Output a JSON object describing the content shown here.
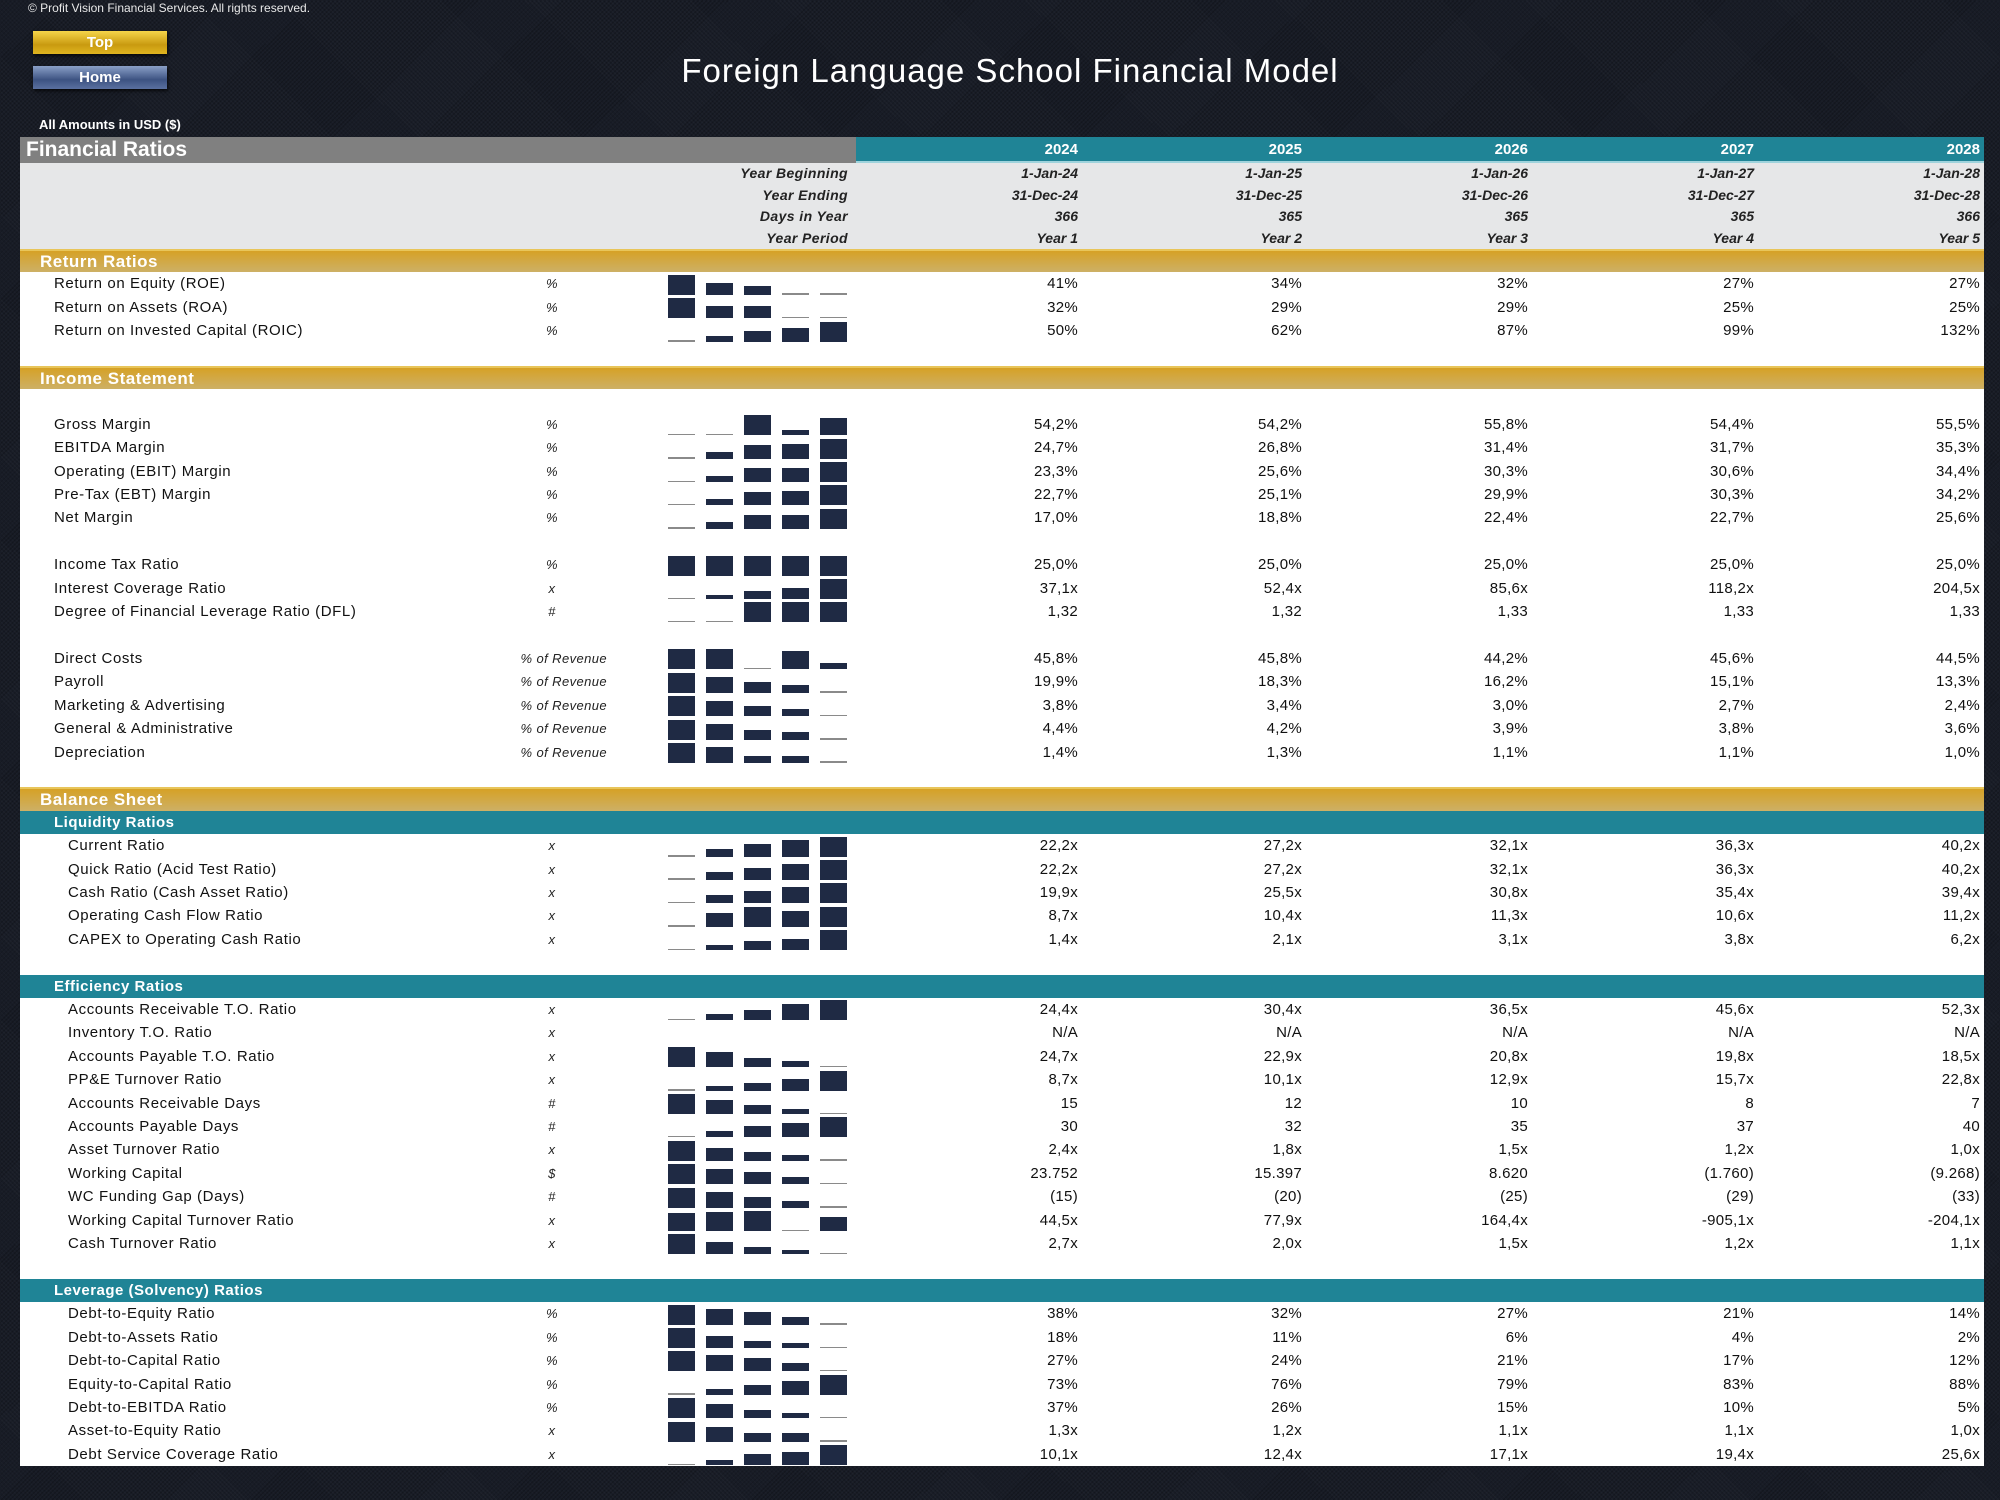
{
  "copyright": "© Profit Vision Financial Services. All rights reserved.",
  "buttons": {
    "top": "Top",
    "home": "Home"
  },
  "title": "Foreign Language School Financial Model",
  "amounts_note": "All Amounts in  USD ($)",
  "header": {
    "title": "Financial Ratios",
    "years": [
      "2024",
      "2025",
      "2026",
      "2027",
      "2028"
    ],
    "info_rows": [
      {
        "label": "Year Beginning",
        "values": [
          "1-Jan-24",
          "1-Jan-25",
          "1-Jan-26",
          "1-Jan-27",
          "1-Jan-28"
        ]
      },
      {
        "label": "Year Ending",
        "values": [
          "31-Dec-24",
          "31-Dec-25",
          "31-Dec-26",
          "31-Dec-27",
          "31-Dec-28"
        ]
      },
      {
        "label": "Days in Year",
        "values": [
          "366",
          "365",
          "365",
          "365",
          "366"
        ]
      },
      {
        "label": "Year Period",
        "values": [
          "Year 1",
          "Year 2",
          "Year 3",
          "Year 4",
          "Year 5"
        ]
      }
    ]
  },
  "colors": {
    "gold": "#d6a126",
    "teal": "#1f8496",
    "header_gray": "#808080",
    "spark": "#1f2a44"
  },
  "rows": [
    {
      "kind": "section",
      "label": "Return Ratios"
    },
    {
      "kind": "item",
      "label": "Return on Equity (ROE)",
      "unit": "%",
      "values": [
        "41%",
        "34%",
        "32%",
        "27%",
        "27%"
      ]
    },
    {
      "kind": "item",
      "label": "Return on Assets (ROA)",
      "unit": "%",
      "values": [
        "32%",
        "29%",
        "29%",
        "25%",
        "25%"
      ]
    },
    {
      "kind": "item",
      "label": "Return on Invested Capital (ROIC)",
      "unit": "%",
      "values": [
        "50%",
        "62%",
        "87%",
        "99%",
        "132%"
      ]
    },
    {
      "kind": "blank"
    },
    {
      "kind": "section",
      "label": "Income Statement"
    },
    {
      "kind": "blank"
    },
    {
      "kind": "item",
      "label": "Gross Margin",
      "unit": "%",
      "values": [
        "54,2%",
        "54,2%",
        "55,8%",
        "54,4%",
        "55,5%"
      ]
    },
    {
      "kind": "item",
      "label": "EBITDA Margin",
      "unit": "%",
      "values": [
        "24,7%",
        "26,8%",
        "31,4%",
        "31,7%",
        "35,3%"
      ]
    },
    {
      "kind": "item",
      "label": "Operating (EBIT) Margin",
      "unit": "%",
      "values": [
        "23,3%",
        "25,6%",
        "30,3%",
        "30,6%",
        "34,4%"
      ]
    },
    {
      "kind": "item",
      "label": "Pre-Tax (EBT) Margin",
      "unit": "%",
      "values": [
        "22,7%",
        "25,1%",
        "29,9%",
        "30,3%",
        "34,2%"
      ]
    },
    {
      "kind": "item",
      "label": "Net Margin",
      "unit": "%",
      "values": [
        "17,0%",
        "18,8%",
        "22,4%",
        "22,7%",
        "25,6%"
      ]
    },
    {
      "kind": "blank"
    },
    {
      "kind": "item",
      "label": "Income Tax Ratio",
      "unit": "%",
      "values": [
        "25,0%",
        "25,0%",
        "25,0%",
        "25,0%",
        "25,0%"
      ]
    },
    {
      "kind": "item",
      "label": "Interest Coverage Ratio",
      "unit": "x",
      "values": [
        "37,1x",
        "52,4x",
        "85,6x",
        "118,2x",
        "204,5x"
      ]
    },
    {
      "kind": "item",
      "label": "Degree of Financial Leverage Ratio (DFL)",
      "unit": "#",
      "values": [
        "1,32",
        "1,32",
        "1,33",
        "1,33",
        "1,33"
      ]
    },
    {
      "kind": "blank"
    },
    {
      "kind": "item",
      "label": "Direct Costs",
      "unit": "% of Revenue",
      "values": [
        "45,8%",
        "45,8%",
        "44,2%",
        "45,6%",
        "44,5%"
      ]
    },
    {
      "kind": "item",
      "label": "Payroll",
      "unit": "% of Revenue",
      "values": [
        "19,9%",
        "18,3%",
        "16,2%",
        "15,1%",
        "13,3%"
      ]
    },
    {
      "kind": "item",
      "label": "Marketing & Advertising",
      "unit": "% of Revenue",
      "values": [
        "3,8%",
        "3,4%",
        "3,0%",
        "2,7%",
        "2,4%"
      ]
    },
    {
      "kind": "item",
      "label": "General & Administrative",
      "unit": "% of Revenue",
      "values": [
        "4,4%",
        "4,2%",
        "3,9%",
        "3,8%",
        "3,6%"
      ]
    },
    {
      "kind": "item",
      "label": "Depreciation",
      "unit": "% of Revenue",
      "values": [
        "1,4%",
        "1,3%",
        "1,1%",
        "1,1%",
        "1,0%"
      ]
    },
    {
      "kind": "blank"
    },
    {
      "kind": "section",
      "label": "Balance Sheet"
    },
    {
      "kind": "subsection",
      "label": "Liquidity Ratios"
    },
    {
      "kind": "subitem",
      "label": "Current Ratio",
      "unit": "x",
      "values": [
        "22,2x",
        "27,2x",
        "32,1x",
        "36,3x",
        "40,2x"
      ]
    },
    {
      "kind": "subitem",
      "label": "Quick Ratio (Acid Test Ratio)",
      "unit": "x",
      "values": [
        "22,2x",
        "27,2x",
        "32,1x",
        "36,3x",
        "40,2x"
      ]
    },
    {
      "kind": "subitem",
      "label": "Cash Ratio (Cash Asset Ratio)",
      "unit": "x",
      "values": [
        "19,9x",
        "25,5x",
        "30,8x",
        "35,4x",
        "39,4x"
      ]
    },
    {
      "kind": "subitem",
      "label": "Operating Cash Flow Ratio",
      "unit": "x",
      "values": [
        "8,7x",
        "10,4x",
        "11,3x",
        "10,6x",
        "11,2x"
      ]
    },
    {
      "kind": "subitem",
      "label": "CAPEX to Operating Cash Ratio",
      "unit": "x",
      "values": [
        "1,4x",
        "2,1x",
        "3,1x",
        "3,8x",
        "6,2x"
      ]
    },
    {
      "kind": "blank"
    },
    {
      "kind": "subsection",
      "label": "Efficiency Ratios"
    },
    {
      "kind": "subitem",
      "label": "Accounts Receivable T.O. Ratio",
      "unit": "x",
      "values": [
        "24,4x",
        "30,4x",
        "36,5x",
        "45,6x",
        "52,3x"
      ]
    },
    {
      "kind": "subitem",
      "label": "Inventory T.O. Ratio",
      "unit": "x",
      "values": [
        "N/A",
        "N/A",
        "N/A",
        "N/A",
        "N/A"
      ]
    },
    {
      "kind": "subitem",
      "label": "Accounts Payable T.O. Ratio",
      "unit": "x",
      "values": [
        "24,7x",
        "22,9x",
        "20,8x",
        "19,8x",
        "18,5x"
      ]
    },
    {
      "kind": "subitem",
      "label": "PP&E Turnover Ratio",
      "unit": "x",
      "values": [
        "8,7x",
        "10,1x",
        "12,9x",
        "15,7x",
        "22,8x"
      ]
    },
    {
      "kind": "subitem",
      "label": "Accounts Receivable Days",
      "unit": "#",
      "values": [
        "15",
        "12",
        "10",
        "8",
        "7"
      ]
    },
    {
      "kind": "subitem",
      "label": "Accounts Payable Days",
      "unit": "#",
      "values": [
        "30",
        "32",
        "35",
        "37",
        "40"
      ]
    },
    {
      "kind": "subitem",
      "label": "Asset Turnover Ratio",
      "unit": "x",
      "values": [
        "2,4x",
        "1,8x",
        "1,5x",
        "1,2x",
        "1,0x"
      ]
    },
    {
      "kind": "subitem",
      "label": "Working Capital",
      "unit": "$",
      "values": [
        "23.752",
        "15.397",
        "8.620",
        "(1.760)",
        "(9.268)"
      ]
    },
    {
      "kind": "subitem",
      "label": "WC Funding Gap (Days)",
      "unit": "#",
      "values": [
        "(15)",
        "(20)",
        "(25)",
        "(29)",
        "(33)"
      ]
    },
    {
      "kind": "subitem",
      "label": "Working Capital Turnover Ratio",
      "unit": "x",
      "values": [
        "44,5x",
        "77,9x",
        "164,4x",
        "-905,1x",
        "-204,1x"
      ]
    },
    {
      "kind": "subitem",
      "label": "Cash Turnover Ratio",
      "unit": "x",
      "values": [
        "2,7x",
        "2,0x",
        "1,5x",
        "1,2x",
        "1,1x"
      ]
    },
    {
      "kind": "blank"
    },
    {
      "kind": "subsection",
      "label": "Leverage (Solvency) Ratios"
    },
    {
      "kind": "subitem",
      "label": "Debt-to-Equity Ratio",
      "unit": "%",
      "values": [
        "38%",
        "32%",
        "27%",
        "21%",
        "14%"
      ]
    },
    {
      "kind": "subitem",
      "label": "Debt-to-Assets Ratio",
      "unit": "%",
      "values": [
        "18%",
        "11%",
        "6%",
        "4%",
        "2%"
      ]
    },
    {
      "kind": "subitem",
      "label": "Debt-to-Capital Ratio",
      "unit": "%",
      "values": [
        "27%",
        "24%",
        "21%",
        "17%",
        "12%"
      ]
    },
    {
      "kind": "subitem",
      "label": "Equity-to-Capital Ratio",
      "unit": "%",
      "values": [
        "73%",
        "76%",
        "79%",
        "83%",
        "88%"
      ]
    },
    {
      "kind": "subitem",
      "label": "Debt-to-EBITDA Ratio",
      "unit": "%",
      "values": [
        "37%",
        "26%",
        "15%",
        "10%",
        "5%"
      ]
    },
    {
      "kind": "subitem",
      "label": "Asset-to-Equity Ratio",
      "unit": "x",
      "values": [
        "1,3x",
        "1,2x",
        "1,1x",
        "1,1x",
        "1,0x"
      ]
    },
    {
      "kind": "subitem",
      "label": "Debt Service Coverage Ratio",
      "unit": "x",
      "values": [
        "10,1x",
        "12,4x",
        "17,1x",
        "19,4x",
        "25,6x"
      ]
    }
  ]
}
